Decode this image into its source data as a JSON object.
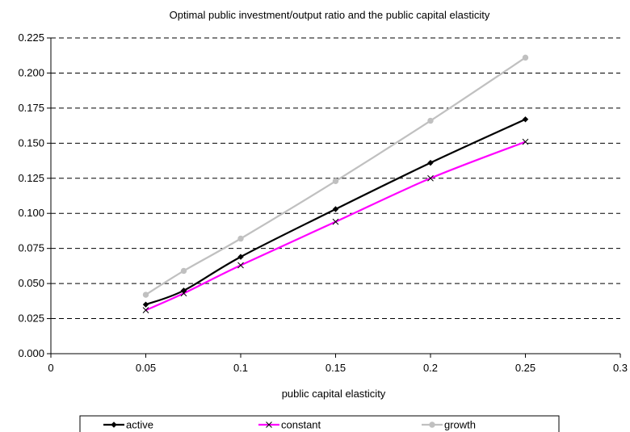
{
  "chart_data": {
    "type": "line",
    "title": "Optimal public investment/output ratio and the public capital elasticity",
    "xlabel": "public capital elasticity",
    "ylabel": "",
    "xlim": [
      0,
      0.3
    ],
    "ylim": [
      0,
      0.225
    ],
    "x_ticks": [
      "0",
      "0.05",
      "0.1",
      "0.15",
      "0.2",
      "0.25",
      "0.3"
    ],
    "y_ticks": [
      "0.000",
      "0.025",
      "0.050",
      "0.075",
      "0.100",
      "0.125",
      "0.150",
      "0.175",
      "0.200",
      "0.225"
    ],
    "grid": "horizontal dashed",
    "legend_position": "bottom",
    "series": [
      {
        "name": "active",
        "color": "#000000",
        "marker": "diamond",
        "x": [
          0.05,
          0.07,
          0.1,
          0.15,
          0.2,
          0.25
        ],
        "y": [
          0.035,
          0.045,
          0.069,
          0.103,
          0.136,
          0.167
        ]
      },
      {
        "name": "constant",
        "color": "#ff00ff",
        "marker": "x",
        "x": [
          0.05,
          0.07,
          0.1,
          0.15,
          0.2,
          0.25
        ],
        "y": [
          0.031,
          0.043,
          0.063,
          0.094,
          0.125,
          0.151
        ]
      },
      {
        "name": "growth",
        "color": "#c0c0c0",
        "marker": "circle",
        "x": [
          0.05,
          0.07,
          0.1,
          0.15,
          0.2,
          0.25
        ],
        "y": [
          0.042,
          0.059,
          0.082,
          0.123,
          0.166,
          0.211
        ]
      }
    ]
  }
}
